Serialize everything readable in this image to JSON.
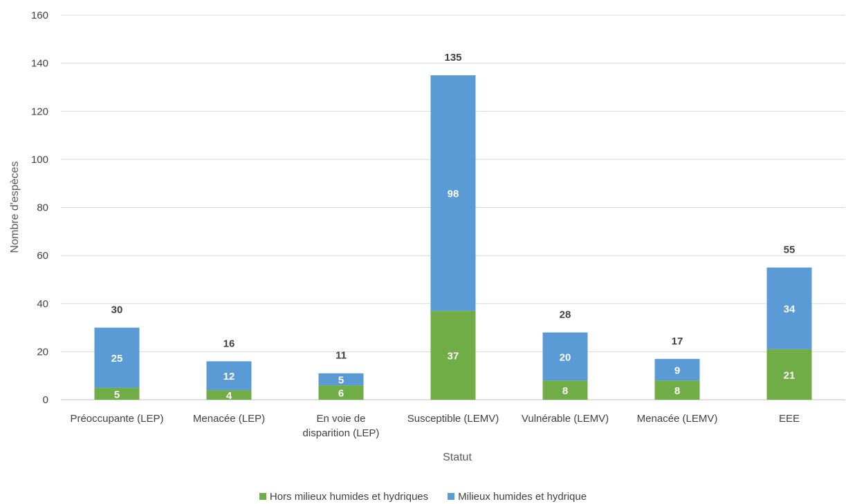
{
  "chart_data": {
    "type": "bar",
    "stacked": true,
    "categories": [
      [
        "Préoccupante (LEP)"
      ],
      [
        "Menacée (LEP)"
      ],
      [
        "En voie de",
        "disparition (LEP)"
      ],
      [
        "Susceptible (LEMV)"
      ],
      [
        "Vulnérable (LEMV)"
      ],
      [
        "Menacée (LEMV)"
      ],
      [
        "EEE"
      ]
    ],
    "series": [
      {
        "name": "Hors milieux humides et hydriques",
        "color": "#70ad47",
        "values": [
          5,
          4,
          6,
          37,
          8,
          8,
          21
        ]
      },
      {
        "name": "Milieux humides et hydrique",
        "color": "#5b9bd5",
        "values": [
          25,
          12,
          5,
          98,
          20,
          9,
          34
        ]
      }
    ],
    "totals": [
      30,
      16,
      11,
      135,
      28,
      17,
      55
    ],
    "xlabel": "Statut",
    "ylabel": "Nombre d'espèces",
    "ylim": [
      0,
      160
    ],
    "yticks": [
      0,
      20,
      40,
      60,
      80,
      100,
      120,
      140,
      160
    ],
    "grid": true,
    "legend_position": "bottom"
  }
}
